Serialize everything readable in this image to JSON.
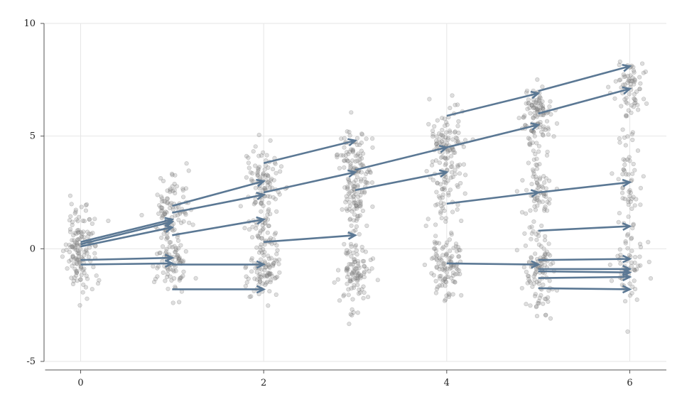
{
  "colors": {
    "arrow": "#5b7894",
    "points": "#7a7a7a",
    "grid": "#e6e6e6",
    "axis": "#555555"
  },
  "chart_data": {
    "type": "scatter",
    "title": "",
    "xlabel": "",
    "ylabel": "",
    "xlim": [
      -0.4,
      6.4
    ],
    "ylim": [
      -5,
      10
    ],
    "grid": true,
    "x_ticks": [
      0,
      2,
      4,
      6
    ],
    "x_tick_labels": [
      "0",
      "2",
      "4",
      "6"
    ],
    "y_ticks": [
      -5,
      0,
      5,
      10
    ],
    "y_tick_labels": [
      "-5",
      "0",
      "5",
      "10"
    ],
    "point_clusters": [
      {
        "x": 0,
        "y_center": 0.0,
        "y_spread": 1.0,
        "count": 150
      },
      {
        "x": 1,
        "y_center": 1.8,
        "y_spread": 0.75,
        "count": 90
      },
      {
        "x": 1,
        "y_center": -0.5,
        "y_spread": 0.85,
        "count": 100
      },
      {
        "x": 2,
        "y_center": 3.0,
        "y_spread": 0.75,
        "count": 100
      },
      {
        "x": 2,
        "y_center": -0.8,
        "y_spread": 0.85,
        "count": 110
      },
      {
        "x": 2,
        "y_center": 1.2,
        "y_spread": 0.6,
        "count": 30
      },
      {
        "x": 3,
        "y_center": 3.8,
        "y_spread": 0.8,
        "count": 100
      },
      {
        "x": 3,
        "y_center": 2.2,
        "y_spread": 0.8,
        "count": 60
      },
      {
        "x": 3,
        "y_center": -0.9,
        "y_spread": 0.85,
        "count": 110
      },
      {
        "x": 4,
        "y_center": 4.6,
        "y_spread": 0.9,
        "count": 110
      },
      {
        "x": 4,
        "y_center": 2.4,
        "y_spread": 0.7,
        "count": 50
      },
      {
        "x": 4,
        "y_center": -0.8,
        "y_spread": 0.8,
        "count": 110
      },
      {
        "x": 5,
        "y_center": 6.0,
        "y_spread": 0.7,
        "count": 110
      },
      {
        "x": 5,
        "y_center": 2.6,
        "y_spread": 1.0,
        "count": 80
      },
      {
        "x": 5,
        "y_center": -1.0,
        "y_spread": 0.8,
        "count": 110
      },
      {
        "x": 6,
        "y_center": 7.2,
        "y_spread": 0.6,
        "count": 70
      },
      {
        "x": 6,
        "y_center": 3.0,
        "y_spread": 1.4,
        "count": 60
      },
      {
        "x": 6,
        "y_center": -0.8,
        "y_spread": 0.8,
        "count": 60
      }
    ],
    "arrows": [
      {
        "x0": 0,
        "y0": 0.3,
        "x1": 1,
        "y1": 1.3
      },
      {
        "x0": 0,
        "y0": 0.2,
        "x1": 1,
        "y1": 1.2
      },
      {
        "x0": 0,
        "y0": 0.1,
        "x1": 1,
        "y1": 0.95
      },
      {
        "x0": 0,
        "y0": -0.5,
        "x1": 1,
        "y1": -0.4
      },
      {
        "x0": 0,
        "y0": -0.7,
        "x1": 1,
        "y1": -0.65
      },
      {
        "x0": 1,
        "y0": 1.9,
        "x1": 2,
        "y1": 3.0
      },
      {
        "x0": 1,
        "y0": 1.6,
        "x1": 2,
        "y1": 2.4
      },
      {
        "x0": 1,
        "y0": 0.6,
        "x1": 2,
        "y1": 1.3
      },
      {
        "x0": 1,
        "y0": -0.7,
        "x1": 2,
        "y1": -0.7
      },
      {
        "x0": 1,
        "y0": -1.8,
        "x1": 2,
        "y1": -1.8
      },
      {
        "x0": 2,
        "y0": 3.8,
        "x1": 3,
        "y1": 4.8
      },
      {
        "x0": 2,
        "y0": 2.5,
        "x1": 3,
        "y1": 3.4
      },
      {
        "x0": 2,
        "y0": 0.3,
        "x1": 3,
        "y1": 0.6
      },
      {
        "x0": 3,
        "y0": 3.5,
        "x1": 4,
        "y1": 4.5
      },
      {
        "x0": 3,
        "y0": 2.6,
        "x1": 4,
        "y1": 3.4
      },
      {
        "x0": 4,
        "y0": 5.9,
        "x1": 5,
        "y1": 6.9
      },
      {
        "x0": 4,
        "y0": 4.5,
        "x1": 5,
        "y1": 5.5
      },
      {
        "x0": 4,
        "y0": 2.0,
        "x1": 5,
        "y1": 2.5
      },
      {
        "x0": 4,
        "y0": -0.65,
        "x1": 5,
        "y1": -0.7
      },
      {
        "x0": 5,
        "y0": 7.0,
        "x1": 6,
        "y1": 8.1
      },
      {
        "x0": 5,
        "y0": 6.0,
        "x1": 6,
        "y1": 7.1
      },
      {
        "x0": 5,
        "y0": 2.5,
        "x1": 6,
        "y1": 2.95
      },
      {
        "x0": 5,
        "y0": 0.8,
        "x1": 6,
        "y1": 1.0
      },
      {
        "x0": 5,
        "y0": -0.5,
        "x1": 6,
        "y1": -0.45
      },
      {
        "x0": 5,
        "y0": -0.9,
        "x1": 6,
        "y1": -0.9
      },
      {
        "x0": 5,
        "y0": -1.0,
        "x1": 6,
        "y1": -1.05
      },
      {
        "x0": 5,
        "y0": -1.3,
        "x1": 6,
        "y1": -1.25
      },
      {
        "x0": 5,
        "y0": -1.75,
        "x1": 6,
        "y1": -1.8
      }
    ]
  }
}
